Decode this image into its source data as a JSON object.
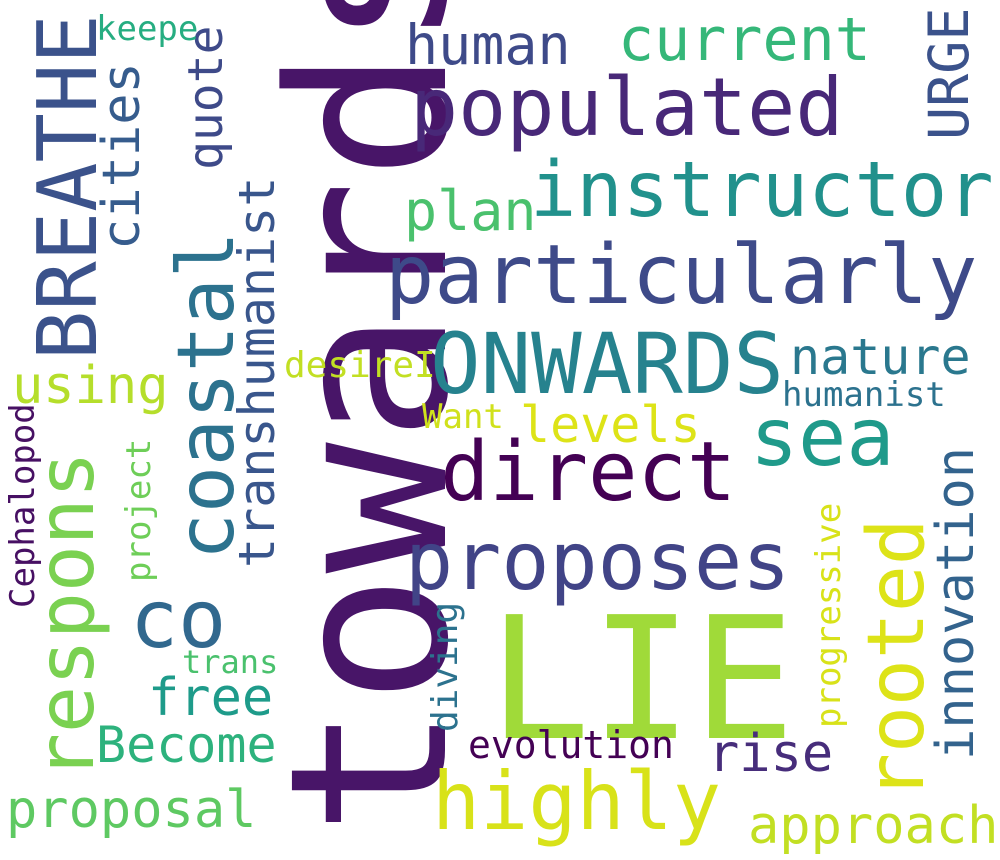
{
  "words": [
    {
      "text": "towards",
      "color": "#481568"
    },
    {
      "text": "LIE",
      "color": "#a0da39"
    },
    {
      "text": "BREATHE",
      "color": "#3b528b"
    },
    {
      "text": "particularly",
      "color": "#3e4a89"
    },
    {
      "text": "populated",
      "color": "#482878"
    },
    {
      "text": "instructor",
      "color": "#21918c"
    },
    {
      "text": "ONWARDS",
      "color": "#26828e"
    },
    {
      "text": "coastal",
      "color": "#2c728e"
    },
    {
      "text": "respons",
      "color": "#7ad151"
    },
    {
      "text": "direct",
      "color": "#440154"
    },
    {
      "text": "proposes",
      "color": "#414487"
    },
    {
      "text": "sea",
      "color": "#1f9a8a"
    },
    {
      "text": "rooted",
      "color": "#dde318"
    },
    {
      "text": "highly",
      "color": "#d8e219"
    },
    {
      "text": "co",
      "color": "#31688e"
    },
    {
      "text": "innovation",
      "color": "#33638d"
    },
    {
      "text": "transhumanist",
      "color": "#39568c"
    },
    {
      "text": "current",
      "color": "#35b779"
    },
    {
      "text": "human",
      "color": "#3e4a89"
    },
    {
      "text": "URGE",
      "color": "#3b528b"
    },
    {
      "text": "cities",
      "color": "#365c8d"
    },
    {
      "text": "quote",
      "color": "#3e4a89"
    },
    {
      "text": "plan",
      "color": "#4ac16d"
    },
    {
      "text": "nature",
      "color": "#2a788e"
    },
    {
      "text": "using",
      "color": "#b5de2b"
    },
    {
      "text": "levels",
      "color": "#dde318"
    },
    {
      "text": "humanist",
      "color": "#2c728e"
    },
    {
      "text": "desireI",
      "color": "#c2df23"
    },
    {
      "text": "Want",
      "color": "#d0e11c"
    },
    {
      "text": "free",
      "color": "#1e9b8a"
    },
    {
      "text": "Become",
      "color": "#2db27d"
    },
    {
      "text": "proposal",
      "color": "#5ec962"
    },
    {
      "text": "approach",
      "color": "#c2df23"
    },
    {
      "text": "rise",
      "color": "#472d7b"
    },
    {
      "text": "evolution",
      "color": "#440154"
    },
    {
      "text": "diving",
      "color": "#2c728e"
    },
    {
      "text": "progressive",
      "color": "#d8e219"
    },
    {
      "text": "project",
      "color": "#6ece58"
    },
    {
      "text": "Cephalopod",
      "color": "#471063"
    },
    {
      "text": "trans",
      "color": "#4ac16d"
    },
    {
      "text": "keepe",
      "color": "#26ad81"
    }
  ]
}
